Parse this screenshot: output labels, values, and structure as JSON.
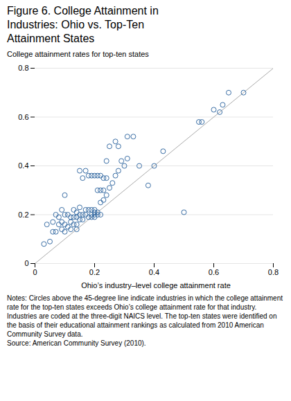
{
  "chart_data": {
    "type": "scatter",
    "title": "Figure 6. College Attainment in\nIndustries: Ohio vs. Top-Ten\nAttainment States",
    "ylabel": "College attainment rates for top-ten states",
    "xlabel": "Ohio’s industry–level college attainment rate",
    "notes": "Notes: Circles above the 45-degree line indicate industries in which the college attainment rate for the top-ten states exceeds Ohio’s college attainment rate for that industry. Industries are coded at the three-digit NAICS level. The top-ten states were identified on the basis of their educational attainment rankings as calculated from 2010 American Community Survey data.\nSource: American Community Survey (2010).",
    "xlim": [
      0,
      0.8
    ],
    "ylim": [
      0,
      0.8
    ],
    "xticks": [
      0,
      0.2,
      0.4,
      0.6,
      0.8
    ],
    "yticks": [
      0,
      0.2,
      0.4,
      0.6,
      0.8
    ],
    "grid": true,
    "series": [
      {
        "type": "line",
        "color": "#aaaaaa",
        "x": [
          0,
          0.8
        ],
        "y": [
          0,
          0.8
        ]
      },
      {
        "type": "scatter",
        "color": "#3a6ea5",
        "marker": "circle",
        "x": [
          0.03,
          0.04,
          0.05,
          0.06,
          0.06,
          0.07,
          0.07,
          0.08,
          0.08,
          0.09,
          0.09,
          0.09,
          0.1,
          0.1,
          0.1,
          0.1,
          0.11,
          0.11,
          0.12,
          0.12,
          0.12,
          0.13,
          0.13,
          0.13,
          0.14,
          0.14,
          0.14,
          0.14,
          0.15,
          0.15,
          0.15,
          0.15,
          0.16,
          0.16,
          0.16,
          0.17,
          0.17,
          0.17,
          0.18,
          0.18,
          0.18,
          0.19,
          0.19,
          0.19,
          0.19,
          0.2,
          0.2,
          0.2,
          0.2,
          0.2,
          0.21,
          0.21,
          0.21,
          0.21,
          0.22,
          0.22,
          0.22,
          0.22,
          0.23,
          0.23,
          0.23,
          0.24,
          0.24,
          0.24,
          0.25,
          0.25,
          0.26,
          0.27,
          0.27,
          0.28,
          0.28,
          0.29,
          0.3,
          0.31,
          0.31,
          0.33,
          0.35,
          0.38,
          0.4,
          0.43,
          0.5,
          0.55,
          0.56,
          0.6,
          0.62,
          0.63,
          0.65,
          0.7
        ],
        "y": [
          0.08,
          0.16,
          0.09,
          0.13,
          0.17,
          0.13,
          0.2,
          0.16,
          0.19,
          0.14,
          0.17,
          0.22,
          0.13,
          0.16,
          0.2,
          0.28,
          0.15,
          0.2,
          0.14,
          0.17,
          0.19,
          0.16,
          0.19,
          0.22,
          0.14,
          0.16,
          0.19,
          0.21,
          0.18,
          0.2,
          0.23,
          0.38,
          0.18,
          0.2,
          0.35,
          0.2,
          0.22,
          0.38,
          0.19,
          0.22,
          0.36,
          0.19,
          0.2,
          0.22,
          0.36,
          0.19,
          0.2,
          0.21,
          0.22,
          0.36,
          0.2,
          0.21,
          0.3,
          0.36,
          0.2,
          0.25,
          0.3,
          0.36,
          0.26,
          0.3,
          0.35,
          0.28,
          0.35,
          0.42,
          0.31,
          0.48,
          0.33,
          0.36,
          0.5,
          0.38,
          0.48,
          0.42,
          0.4,
          0.43,
          0.52,
          0.52,
          0.4,
          0.32,
          0.4,
          0.46,
          0.21,
          0.58,
          0.58,
          0.63,
          0.62,
          0.65,
          0.7,
          0.7
        ]
      }
    ]
  }
}
